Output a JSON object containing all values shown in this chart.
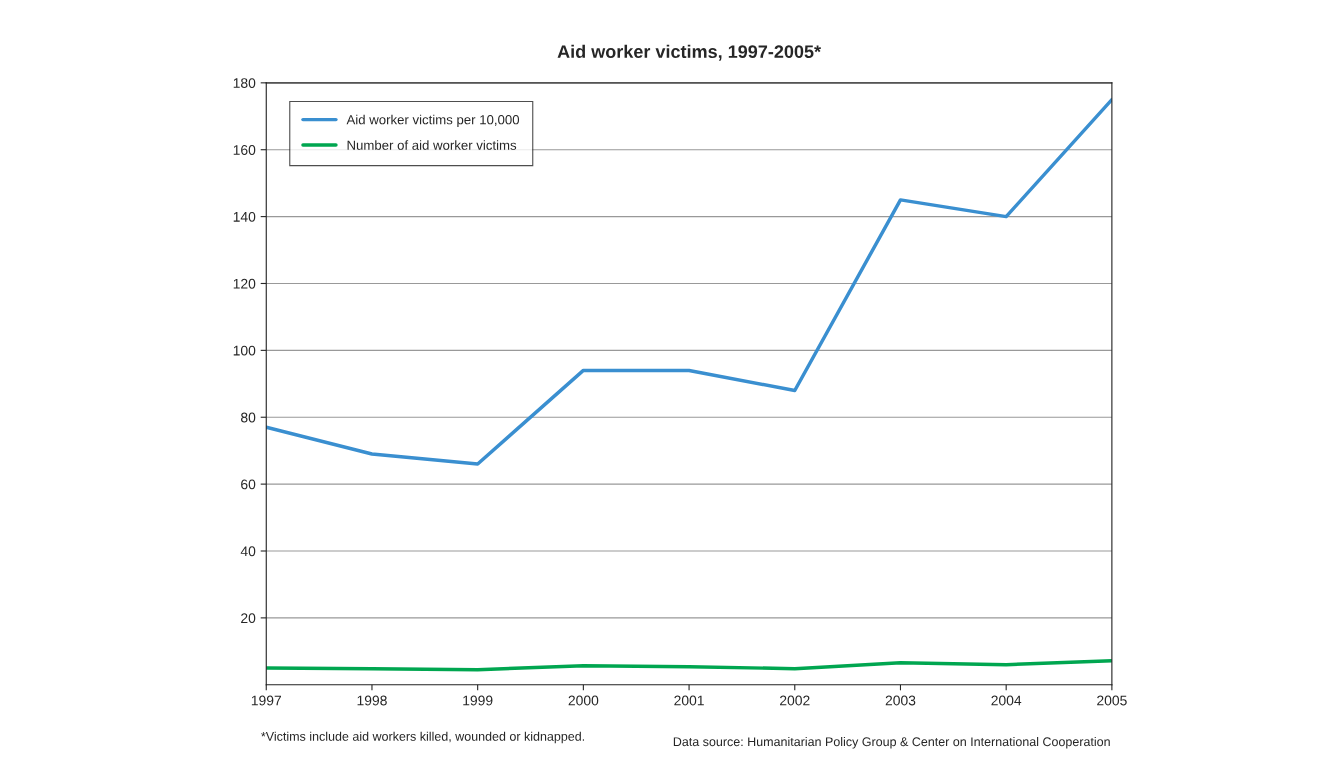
{
  "chart_data": {
    "type": "line",
    "title": "Aid worker victims, 1997-2005*",
    "x": [
      1997,
      1998,
      1999,
      2000,
      2001,
      2002,
      2003,
      2004,
      2005
    ],
    "series": [
      {
        "name": "Aid worker victims per 10,000",
        "color": "#3a8fd0",
        "values": [
          77,
          69,
          66,
          94,
          94,
          88,
          145,
          140,
          175
        ]
      },
      {
        "name": "Number of aid worker victims",
        "color": "#00a650",
        "values": [
          5,
          4.8,
          4.5,
          5.7,
          5.4,
          4.8,
          6.6,
          6,
          7.2
        ]
      }
    ],
    "xlim": [
      1997,
      2005
    ],
    "xticks": [
      1997,
      1998,
      1999,
      2000,
      2001,
      2002,
      2003,
      2004,
      2005
    ],
    "ylim": [
      0,
      180
    ],
    "yticks": [
      20,
      40,
      60,
      80,
      100,
      120,
      140,
      160,
      180
    ],
    "grid": "y",
    "legend": "top left",
    "line_style": "solid",
    "marker": "none",
    "annotations": [
      "*Victims include aid workers killed, wounded or kidnapped.",
      "Data source: Humanitarian Policy Group & Center on International Cooperation"
    ]
  }
}
